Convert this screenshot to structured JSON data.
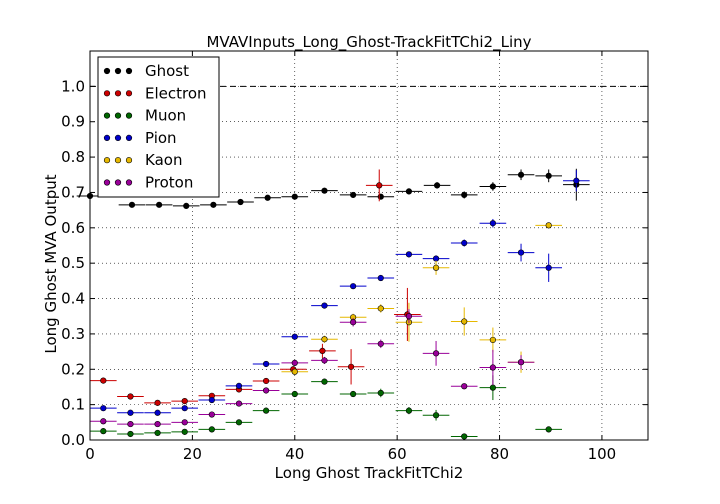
{
  "chart_data": {
    "type": "scatter",
    "title": "MVAVInputs_Long_Ghost-TrackFitTChi2_Liny",
    "xlabel": "Long Ghost TrackFitTChi2",
    "ylabel": "Long Ghost MVA Output",
    "xlim": [
      0,
      109
    ],
    "ylim": [
      0,
      1.1
    ],
    "xticks": [
      0,
      20,
      40,
      60,
      80,
      100
    ],
    "yticks": [
      0.0,
      0.1,
      0.2,
      0.3,
      0.4,
      0.5,
      0.6,
      0.7,
      0.8,
      0.9,
      1.0
    ],
    "xtick_labels": [
      "0",
      "20",
      "40",
      "60",
      "80",
      "100"
    ],
    "ytick_labels": [
      "0.0",
      "0.1",
      "0.2",
      "0.3",
      "0.4",
      "0.5",
      "0.6",
      "0.7",
      "0.8",
      "0.9",
      "1.0"
    ],
    "grid": true,
    "reference_line": {
      "y": 1.0,
      "style": "dashed"
    },
    "legend_position": "top-left",
    "series": [
      {
        "name": "Ghost",
        "color": "#000000",
        "points": [
          {
            "x": 0,
            "y": 0.69,
            "xerr": 2.6,
            "yerr": 0.004
          },
          {
            "x": 8.2,
            "y": 0.665,
            "xerr": 2.6,
            "yerr": 0.004
          },
          {
            "x": 13.5,
            "y": 0.665,
            "xerr": 2.6,
            "yerr": 0.004
          },
          {
            "x": 18.8,
            "y": 0.662,
            "xerr": 2.6,
            "yerr": 0.004
          },
          {
            "x": 24.1,
            "y": 0.665,
            "xerr": 2.6,
            "yerr": 0.004
          },
          {
            "x": 29.4,
            "y": 0.673,
            "xerr": 2.6,
            "yerr": 0.004
          },
          {
            "x": 34.7,
            "y": 0.685,
            "xerr": 2.6,
            "yerr": 0.004
          },
          {
            "x": 40.0,
            "y": 0.688,
            "xerr": 2.6,
            "yerr": 0.005
          },
          {
            "x": 45.8,
            "y": 0.705,
            "xerr": 2.6,
            "yerr": 0.005
          },
          {
            "x": 51.4,
            "y": 0.693,
            "xerr": 2.6,
            "yerr": 0.006
          },
          {
            "x": 56.8,
            "y": 0.688,
            "xerr": 2.6,
            "yerr": 0.007
          },
          {
            "x": 62.3,
            "y": 0.703,
            "xerr": 2.6,
            "yerr": 0.008
          },
          {
            "x": 67.8,
            "y": 0.72,
            "xerr": 2.6,
            "yerr": 0.009
          },
          {
            "x": 73.1,
            "y": 0.693,
            "xerr": 2.6,
            "yerr": 0.01
          },
          {
            "x": 78.7,
            "y": 0.717,
            "xerr": 2.6,
            "yerr": 0.012
          },
          {
            "x": 84.2,
            "y": 0.75,
            "xerr": 2.6,
            "yerr": 0.015
          },
          {
            "x": 89.6,
            "y": 0.747,
            "xerr": 2.6,
            "yerr": 0.018
          },
          {
            "x": 95.0,
            "y": 0.722,
            "xerr": 2.6,
            "yerr": 0.045
          }
        ]
      },
      {
        "name": "Electron",
        "color": "#cc0000",
        "points": [
          {
            "x": 2.6,
            "y": 0.168,
            "xerr": 2.6,
            "yerr": 0.004
          },
          {
            "x": 7.9,
            "y": 0.123,
            "xerr": 2.6,
            "yerr": 0.004
          },
          {
            "x": 13.2,
            "y": 0.105,
            "xerr": 2.6,
            "yerr": 0.004
          },
          {
            "x": 18.5,
            "y": 0.11,
            "xerr": 2.6,
            "yerr": 0.004
          },
          {
            "x": 23.8,
            "y": 0.125,
            "xerr": 2.6,
            "yerr": 0.004
          },
          {
            "x": 29.1,
            "y": 0.143,
            "xerr": 2.6,
            "yerr": 0.005
          },
          {
            "x": 34.4,
            "y": 0.167,
            "xerr": 2.6,
            "yerr": 0.006
          },
          {
            "x": 39.7,
            "y": 0.2,
            "xerr": 2.6,
            "yerr": 0.008
          },
          {
            "x": 45.4,
            "y": 0.252,
            "xerr": 2.6,
            "yerr": 0.02
          },
          {
            "x": 51.0,
            "y": 0.207,
            "xerr": 2.6,
            "yerr": 0.05
          },
          {
            "x": 56.5,
            "y": 0.72,
            "xerr": 2.6,
            "yerr": 0.045
          },
          {
            "x": 62.0,
            "y": 0.355,
            "xerr": 2.6,
            "yerr": 0.075
          }
        ]
      },
      {
        "name": "Muon",
        "color": "#006600",
        "points": [
          {
            "x": 2.6,
            "y": 0.025,
            "xerr": 2.6,
            "yerr": 0.003
          },
          {
            "x": 7.9,
            "y": 0.017,
            "xerr": 2.6,
            "yerr": 0.003
          },
          {
            "x": 13.2,
            "y": 0.02,
            "xerr": 2.6,
            "yerr": 0.003
          },
          {
            "x": 18.5,
            "y": 0.023,
            "xerr": 2.6,
            "yerr": 0.003
          },
          {
            "x": 23.8,
            "y": 0.03,
            "xerr": 2.6,
            "yerr": 0.003
          },
          {
            "x": 29.1,
            "y": 0.05,
            "xerr": 2.6,
            "yerr": 0.004
          },
          {
            "x": 34.4,
            "y": 0.083,
            "xerr": 2.6,
            "yerr": 0.005
          },
          {
            "x": 40.0,
            "y": 0.13,
            "xerr": 2.6,
            "yerr": 0.006
          },
          {
            "x": 45.8,
            "y": 0.165,
            "xerr": 2.6,
            "yerr": 0.007
          },
          {
            "x": 51.4,
            "y": 0.13,
            "xerr": 2.6,
            "yerr": 0.008
          },
          {
            "x": 56.8,
            "y": 0.133,
            "xerr": 2.6,
            "yerr": 0.012
          },
          {
            "x": 62.3,
            "y": 0.083,
            "xerr": 2.6,
            "yerr": 0.01
          },
          {
            "x": 67.6,
            "y": 0.07,
            "xerr": 2.6,
            "yerr": 0.015
          },
          {
            "x": 73.1,
            "y": 0.01,
            "xerr": 2.6,
            "yerr": 0.005
          },
          {
            "x": 78.7,
            "y": 0.148,
            "xerr": 2.6,
            "yerr": 0.035
          },
          {
            "x": 89.6,
            "y": 0.03,
            "xerr": 2.6,
            "yerr": 0.005
          }
        ]
      },
      {
        "name": "Pion",
        "color": "#0000cc",
        "points": [
          {
            "x": 2.6,
            "y": 0.09,
            "xerr": 2.6,
            "yerr": 0.003
          },
          {
            "x": 7.9,
            "y": 0.077,
            "xerr": 2.6,
            "yerr": 0.003
          },
          {
            "x": 13.2,
            "y": 0.077,
            "xerr": 2.6,
            "yerr": 0.003
          },
          {
            "x": 18.5,
            "y": 0.09,
            "xerr": 2.6,
            "yerr": 0.003
          },
          {
            "x": 23.8,
            "y": 0.113,
            "xerr": 2.6,
            "yerr": 0.003
          },
          {
            "x": 29.1,
            "y": 0.153,
            "xerr": 2.6,
            "yerr": 0.004
          },
          {
            "x": 34.4,
            "y": 0.215,
            "xerr": 2.6,
            "yerr": 0.004
          },
          {
            "x": 40.0,
            "y": 0.292,
            "xerr": 2.6,
            "yerr": 0.005
          },
          {
            "x": 45.8,
            "y": 0.38,
            "xerr": 2.6,
            "yerr": 0.006
          },
          {
            "x": 51.4,
            "y": 0.435,
            "xerr": 2.6,
            "yerr": 0.006
          },
          {
            "x": 56.8,
            "y": 0.458,
            "xerr": 2.6,
            "yerr": 0.007
          },
          {
            "x": 62.3,
            "y": 0.525,
            "xerr": 2.6,
            "yerr": 0.008
          },
          {
            "x": 67.6,
            "y": 0.513,
            "xerr": 2.6,
            "yerr": 0.009
          },
          {
            "x": 73.1,
            "y": 0.557,
            "xerr": 2.6,
            "yerr": 0.01
          },
          {
            "x": 78.7,
            "y": 0.613,
            "xerr": 2.6,
            "yerr": 0.012
          },
          {
            "x": 84.2,
            "y": 0.53,
            "xerr": 2.6,
            "yerr": 0.025
          },
          {
            "x": 89.6,
            "y": 0.487,
            "xerr": 2.6,
            "yerr": 0.04
          },
          {
            "x": 95.0,
            "y": 0.733,
            "xerr": 2.6,
            "yerr": 0.03
          }
        ]
      },
      {
        "name": "Kaon",
        "color": "#e6b800",
        "points": [
          {
            "x": 40.0,
            "y": 0.193,
            "xerr": 2.6,
            "yerr": 0.008
          },
          {
            "x": 45.8,
            "y": 0.285,
            "xerr": 2.6,
            "yerr": 0.01
          },
          {
            "x": 51.4,
            "y": 0.347,
            "xerr": 2.6,
            "yerr": 0.01
          },
          {
            "x": 56.8,
            "y": 0.372,
            "xerr": 2.6,
            "yerr": 0.012
          },
          {
            "x": 62.3,
            "y": 0.333,
            "xerr": 2.6,
            "yerr": 0.055
          },
          {
            "x": 67.6,
            "y": 0.487,
            "xerr": 2.6,
            "yerr": 0.02
          },
          {
            "x": 73.1,
            "y": 0.335,
            "xerr": 2.6,
            "yerr": 0.04
          },
          {
            "x": 78.7,
            "y": 0.283,
            "xerr": 2.6,
            "yerr": 0.035
          },
          {
            "x": 84.2,
            "y": 0.22,
            "xerr": 2.6,
            "yerr": 0.03
          },
          {
            "x": 89.6,
            "y": 0.607,
            "xerr": 2.6,
            "yerr": 0.008
          }
        ]
      },
      {
        "name": "Proton",
        "color": "#990099",
        "points": [
          {
            "x": 2.6,
            "y": 0.053,
            "xerr": 2.6,
            "yerr": 0.003
          },
          {
            "x": 7.9,
            "y": 0.045,
            "xerr": 2.6,
            "yerr": 0.003
          },
          {
            "x": 13.2,
            "y": 0.045,
            "xerr": 2.6,
            "yerr": 0.003
          },
          {
            "x": 18.5,
            "y": 0.05,
            "xerr": 2.6,
            "yerr": 0.003
          },
          {
            "x": 23.8,
            "y": 0.072,
            "xerr": 2.6,
            "yerr": 0.004
          },
          {
            "x": 29.1,
            "y": 0.103,
            "xerr": 2.6,
            "yerr": 0.005
          },
          {
            "x": 34.4,
            "y": 0.14,
            "xerr": 2.6,
            "yerr": 0.006
          },
          {
            "x": 40.0,
            "y": 0.218,
            "xerr": 2.6,
            "yerr": 0.008
          },
          {
            "x": 45.8,
            "y": 0.225,
            "xerr": 2.6,
            "yerr": 0.01
          },
          {
            "x": 51.4,
            "y": 0.333,
            "xerr": 2.6,
            "yerr": 0.012
          },
          {
            "x": 56.8,
            "y": 0.272,
            "xerr": 2.6,
            "yerr": 0.012
          },
          {
            "x": 62.3,
            "y": 0.35,
            "xerr": 2.6,
            "yerr": 0.02
          },
          {
            "x": 67.6,
            "y": 0.245,
            "xerr": 2.6,
            "yerr": 0.035
          },
          {
            "x": 73.1,
            "y": 0.152,
            "xerr": 2.6,
            "yerr": 0.006
          },
          {
            "x": 78.7,
            "y": 0.205,
            "xerr": 2.6,
            "yerr": 0.05
          },
          {
            "x": 84.2,
            "y": 0.22,
            "xerr": 2.6,
            "yerr": 0.02
          }
        ]
      }
    ]
  }
}
